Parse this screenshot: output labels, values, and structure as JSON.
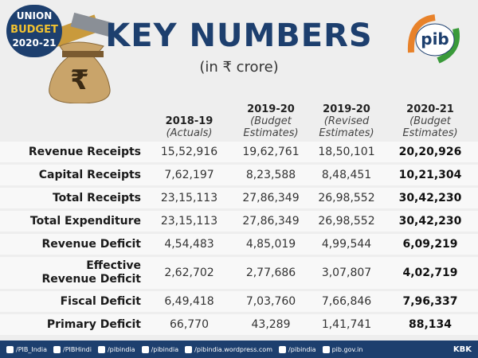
{
  "badge": {
    "line1": "UNION",
    "line2": "BUDGET",
    "line3": "2020-21"
  },
  "header": {
    "title": "KEY NUMBERS",
    "subtitle": "(in ₹ crore)"
  },
  "logo": {
    "text": "pib"
  },
  "table": {
    "columns": [
      {
        "year": "2018-19",
        "note": [
          "(Actuals)"
        ]
      },
      {
        "year": "2019-20",
        "note": [
          "(Budget",
          "Estimates)"
        ]
      },
      {
        "year": "2019-20",
        "note": [
          "(Revised",
          "Estimates)"
        ]
      },
      {
        "year": "2020-21",
        "note": [
          "(Budget",
          "Estimates)"
        ]
      }
    ],
    "rows": [
      {
        "label": "Revenue Receipts",
        "cells": [
          "15,52,916",
          "19,62,761",
          "18,50,101",
          "20,20,926"
        ]
      },
      {
        "label": "Capital Receipts",
        "cells": [
          "7,62,197",
          "8,23,588",
          "8,48,451",
          "10,21,304"
        ]
      },
      {
        "label": "Total Receipts",
        "cells": [
          "23,15,113",
          "27,86,349",
          "26,98,552",
          "30,42,230"
        ]
      },
      {
        "label": "Total Expenditure",
        "cells": [
          "23,15,113",
          "27,86,349",
          "26,98,552",
          "30,42,230"
        ]
      },
      {
        "label": "Revenue Deficit",
        "cells": [
          "4,54,483",
          "4,85,019",
          "4,99,544",
          "6,09,219"
        ]
      },
      {
        "label": "Effective\nRevenue Deficit",
        "cells": [
          "2,62,702",
          "2,77,686",
          "3,07,807",
          "4,02,719"
        ]
      },
      {
        "label": "Fiscal Deficit",
        "cells": [
          "6,49,418",
          "7,03,760",
          "7,66,846",
          "7,96,337"
        ]
      },
      {
        "label": "Primary Deficit",
        "cells": [
          "66,770",
          "43,289",
          "1,41,741",
          "88,134"
        ]
      }
    ]
  },
  "footer": {
    "links": [
      "/PIB_India",
      "/PIBHindi",
      "/pibindia",
      "/pibindia",
      "/pibindia.wordpress.com",
      "/pibindia",
      "pib.gov.in"
    ],
    "credit": "KBK"
  }
}
